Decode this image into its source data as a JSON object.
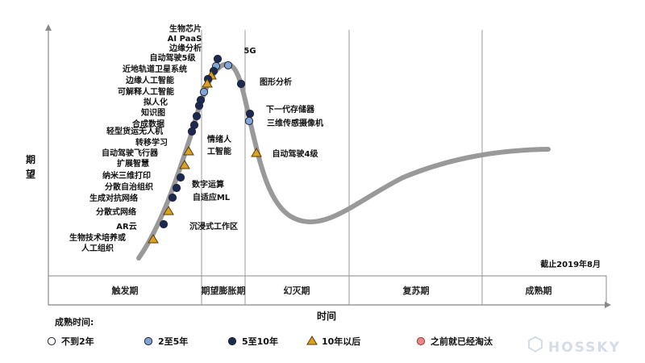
{
  "chart_data": {
    "type": "line",
    "xlabel": "时间",
    "ylabel": "期望",
    "date_note": "截止2019年8月",
    "phases": [
      "触发期",
      "期望膨胀期",
      "幻灭期",
      "复苏期",
      "成熟期"
    ],
    "technologies": [
      {
        "label": "生物芯片",
        "maturity": "5至10年"
      },
      {
        "label": "AI PaaS",
        "maturity": "2至5年"
      },
      {
        "label": "边缘分析",
        "maturity": "5至10年"
      },
      {
        "label": "自动驾驶5级",
        "maturity": "10年以后"
      },
      {
        "label": "近地轨道卫星系统",
        "maturity": "5至10年"
      },
      {
        "label": "边缘人工智能",
        "maturity": "10年以后"
      },
      {
        "label": "可解释人工智能",
        "maturity": "2至5年"
      },
      {
        "label": "拟人化",
        "maturity": "5至10年"
      },
      {
        "label": "知识图",
        "maturity": "5至10年"
      },
      {
        "label": "合成数据",
        "maturity": "5至10年"
      },
      {
        "label": "轻型货运无人机",
        "maturity": "5至10年"
      },
      {
        "label": "转移学习",
        "maturity": "5至10年"
      },
      {
        "label": "自动驾驶飞行器",
        "maturity": "10年以后"
      },
      {
        "label": "扩展智慧",
        "maturity": "10年以后"
      },
      {
        "label": "纳米三维打印",
        "maturity": "5至10年"
      },
      {
        "label": "分散自治组织",
        "maturity": "5至10年"
      },
      {
        "label": "生成对抗网络",
        "maturity": "5至10年"
      },
      {
        "label": "分散式网络",
        "maturity": "10年以后"
      },
      {
        "label": "AR云",
        "maturity": "5至10年"
      },
      {
        "label": "生物技术培养或人工组织",
        "maturity": "10年以后"
      },
      {
        "label": "5G",
        "maturity": "2至5年"
      },
      {
        "label": "图形分析",
        "maturity": "5至10年"
      },
      {
        "label": "下一代存储器",
        "maturity": "5至10年"
      },
      {
        "label": "三维传感摄像机",
        "maturity": "2至5年"
      },
      {
        "label": "自动驾驶4级",
        "maturity": "10年以后"
      },
      {
        "label": "情绪人工智能",
        "maturity": ""
      },
      {
        "label": "数字运算",
        "maturity": ""
      },
      {
        "label": "自适应ML",
        "maturity": ""
      },
      {
        "label": "沉浸式工作区",
        "maturity": ""
      }
    ],
    "legend": {
      "title": "成熟时间:",
      "items": [
        {
          "label": "不到2年",
          "color": "#ffffff"
        },
        {
          "label": "2至5年",
          "color": "#7fa6d6"
        },
        {
          "label": "5至10年",
          "color": "#1b2a52"
        },
        {
          "label": "10年以后",
          "color": "#d9a227"
        },
        {
          "label": "之前就已经淘汰",
          "color": "#e88a8a"
        }
      ]
    }
  },
  "watermark": "HOSSKY"
}
